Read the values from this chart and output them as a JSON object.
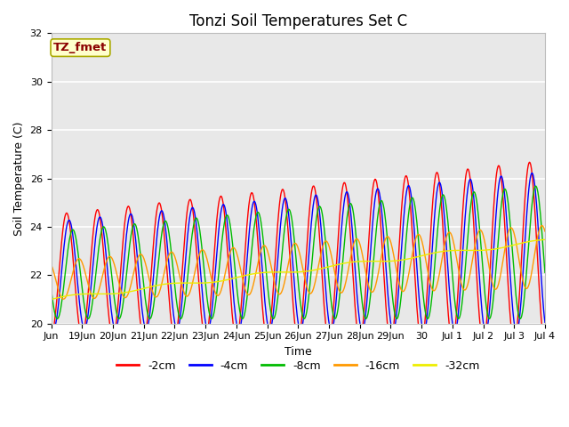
{
  "title": "Tonzi Soil Temperatures Set C",
  "xlabel": "Time",
  "ylabel": "Soil Temperature (C)",
  "ylim": [
    20,
    32
  ],
  "tick_labels": [
    "Jun",
    "19Jun",
    "20Jun",
    "21Jun",
    "22Jun",
    "23Jun",
    "24Jun",
    "25Jun",
    "26Jun",
    "27Jun",
    "28Jun",
    "29Jun",
    "30",
    "Jul 1",
    "Jul 2",
    "Jul 3",
    "Jul 4"
  ],
  "legend_labels": [
    "-2cm",
    "-4cm",
    "-8cm",
    "-16cm",
    "-32cm"
  ],
  "line_colors": [
    "#ff0000",
    "#0000ff",
    "#00bb00",
    "#ff9900",
    "#eeee00"
  ],
  "annotation_text": "TZ_fmet",
  "annotation_color": "#8b0000",
  "annotation_bg": "#ffffcc",
  "annotation_edge": "#aaaa00",
  "background_color": "#e8e8e8",
  "grid_color": "#ffffff",
  "title_fontsize": 12,
  "axis_fontsize": 9,
  "tick_fontsize": 8,
  "legend_fontsize": 9
}
